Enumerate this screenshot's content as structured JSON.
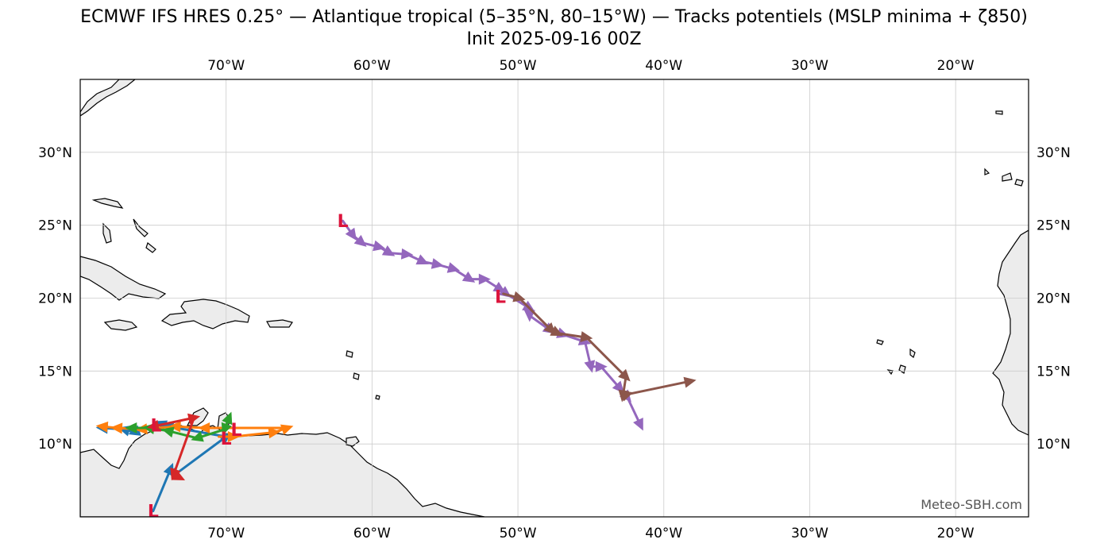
{
  "title": {
    "line1": "ECMWF IFS HRES 0.25° — Atlantique tropical (5–35°N, 80–15°W) — Tracks potentiels (MSLP minima + ζ850)",
    "line2": "Init 2025-09-16 00Z"
  },
  "credit": "Meteo-SBH.com",
  "colors": {
    "land": "#ececec",
    "coast": "#000000",
    "grid": "#cccccc",
    "low_marker": "#dc143c"
  },
  "map": {
    "projection": "PlateCarree",
    "lon_range": [
      -80,
      -15
    ],
    "lat_range": [
      5,
      35
    ],
    "lon_ticks": [
      {
        "value": -70,
        "label": "70°W"
      },
      {
        "value": -60,
        "label": "60°W"
      },
      {
        "value": -50,
        "label": "50°W"
      },
      {
        "value": -40,
        "label": "40°W"
      },
      {
        "value": -30,
        "label": "30°W"
      },
      {
        "value": -20,
        "label": "20°W"
      }
    ],
    "lat_ticks": [
      {
        "value": 10,
        "label": "10°N"
      },
      {
        "value": 15,
        "label": "15°N"
      },
      {
        "value": 20,
        "label": "20°N"
      },
      {
        "value": 25,
        "label": "25°N"
      },
      {
        "value": 30,
        "label": "30°N"
      }
    ],
    "low_symbol": "L",
    "tracks": [
      {
        "color": "#9467bd",
        "points": [
          [
            -62.0,
            25.3
          ],
          [
            -61.3,
            24.3
          ],
          [
            -60.7,
            23.8
          ],
          [
            -59.5,
            23.5
          ],
          [
            -58.8,
            23.1
          ],
          [
            -57.6,
            23.0
          ],
          [
            -56.5,
            22.5
          ],
          [
            -55.5,
            22.3
          ],
          [
            -54.4,
            22.0
          ],
          [
            -53.3,
            21.3
          ],
          [
            -52.3,
            21.3
          ],
          [
            -51.2,
            20.6
          ],
          [
            -50.8,
            20.3
          ],
          [
            -49.2,
            19.3
          ],
          [
            -49.2,
            18.8
          ],
          [
            -47.8,
            17.8
          ],
          [
            -46.9,
            17.5
          ],
          [
            -45.4,
            17.0
          ],
          [
            -45.0,
            15.3
          ],
          [
            -44.3,
            15.3
          ],
          [
            -43.0,
            13.8
          ],
          [
            -42.5,
            13.2
          ],
          [
            -41.6,
            11.3
          ]
        ]
      },
      {
        "color": "#8c564b",
        "points": [
          [
            -51.0,
            20.3
          ],
          [
            -49.9,
            20.0
          ],
          [
            -47.7,
            17.8
          ],
          [
            -47.3,
            17.6
          ],
          [
            -45.3,
            17.3
          ],
          [
            -42.6,
            14.6
          ],
          [
            -42.8,
            13.3
          ],
          [
            -42.5,
            13.4
          ],
          [
            -38.2,
            14.3
          ]
        ]
      },
      {
        "color": "#1f77b4",
        "points": [
          [
            -75.0,
            5.4
          ],
          [
            -73.8,
            8.3
          ],
          [
            -73.5,
            7.9
          ],
          [
            -70.0,
            10.5
          ],
          [
            -74.0,
            11.2
          ],
          [
            -74.5,
            11.4
          ],
          [
            -76.3,
            10.8
          ],
          [
            -77.0,
            11.0
          ],
          [
            -78.5,
            11.1
          ]
        ]
      },
      {
        "color": "#ff7f0e",
        "points": [
          [
            -70.5,
            10.5
          ],
          [
            -69.5,
            10.5
          ],
          [
            -66.7,
            10.8
          ],
          [
            -65.8,
            11.1
          ],
          [
            -71.5,
            11.1
          ],
          [
            -73.5,
            11.2
          ],
          [
            -75.8,
            11.0
          ],
          [
            -77.5,
            11.1
          ],
          [
            -78.5,
            11.2
          ]
        ]
      },
      {
        "color": "#2ca02c",
        "points": [
          [
            -70.0,
            11.3
          ],
          [
            -69.8,
            11.8
          ],
          [
            -70.1,
            11.0
          ],
          [
            -72.0,
            10.4
          ],
          [
            -74.0,
            10.9
          ],
          [
            -75.3,
            11.1
          ],
          [
            -76.5,
            11.1
          ]
        ]
      },
      {
        "color": "#d62728",
        "points": [
          [
            -74.5,
            11.3
          ],
          [
            -75.0,
            11.2
          ],
          [
            -72.2,
            11.8
          ],
          [
            -73.6,
            7.9
          ],
          [
            -73.2,
            7.7
          ]
        ]
      }
    ],
    "lows": [
      [
        -62.0,
        25.3
      ],
      [
        -51.2,
        20.1
      ],
      [
        -75.0,
        5.4
      ],
      [
        -70.0,
        10.4
      ],
      [
        -69.3,
        11.0
      ],
      [
        -74.8,
        11.3
      ]
    ]
  }
}
